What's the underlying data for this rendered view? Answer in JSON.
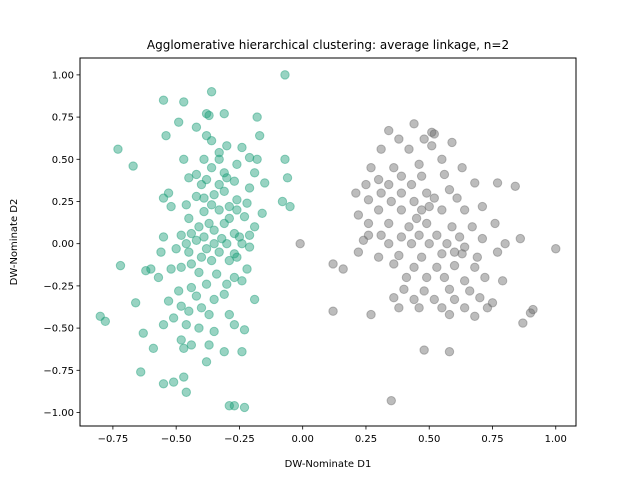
{
  "chart_data": {
    "type": "scatter",
    "title": "Agglomerative hierarchical clustering: average linkage, n=2",
    "xlabel": "DW-Nominate D1",
    "ylabel": "DW-Nominate D2",
    "xlim": [
      -0.88,
      1.08
    ],
    "ylim": [
      -1.08,
      1.1
    ],
    "xticks": [
      -0.75,
      -0.5,
      -0.25,
      0.0,
      0.25,
      0.5,
      0.75,
      1.0
    ],
    "xtick_labels": [
      "−0.75",
      "−0.50",
      "−0.25",
      "0.00",
      "0.25",
      "0.50",
      "0.75",
      "1.00"
    ],
    "yticks": [
      -1.0,
      -0.75,
      -0.5,
      -0.25,
      0.0,
      0.25,
      0.5,
      0.75,
      1.0
    ],
    "ytick_labels": [
      "−1.00",
      "−0.75",
      "−0.50",
      "−0.25",
      "0.00",
      "0.25",
      "0.50",
      "0.75",
      "1.00"
    ],
    "grid": false,
    "series": [
      {
        "color": "#1b9e77",
        "alpha": 0.45,
        "points": [
          [
            -0.07,
            1.0
          ],
          [
            -0.36,
            0.9
          ],
          [
            -0.55,
            0.85
          ],
          [
            -0.47,
            0.84
          ],
          [
            -0.38,
            0.77
          ],
          [
            -0.31,
            0.77
          ],
          [
            -0.37,
            0.76
          ],
          [
            -0.42,
            0.69
          ],
          [
            -0.18,
            0.75
          ],
          [
            -0.49,
            0.72
          ],
          [
            -0.54,
            0.64
          ],
          [
            -0.38,
            0.64
          ],
          [
            -0.36,
            0.61
          ],
          [
            -0.17,
            0.64
          ],
          [
            -0.73,
            0.56
          ],
          [
            -0.3,
            0.58
          ],
          [
            -0.24,
            0.57
          ],
          [
            -0.33,
            0.54
          ],
          [
            -0.21,
            0.51
          ],
          [
            -0.07,
            0.5
          ],
          [
            -0.67,
            0.46
          ],
          [
            -0.47,
            0.5
          ],
          [
            -0.39,
            0.5
          ],
          [
            -0.33,
            0.5
          ],
          [
            -0.18,
            0.5
          ],
          [
            -0.26,
            0.47
          ],
          [
            -0.36,
            0.45
          ],
          [
            -0.31,
            0.42
          ],
          [
            -0.19,
            0.42
          ],
          [
            -0.42,
            0.41
          ],
          [
            -0.3,
            0.39
          ],
          [
            -0.45,
            0.39
          ],
          [
            -0.38,
            0.38
          ],
          [
            -0.27,
            0.37
          ],
          [
            -0.4,
            0.35
          ],
          [
            -0.33,
            0.35
          ],
          [
            -0.15,
            0.36
          ],
          [
            -0.06,
            0.39
          ],
          [
            -0.21,
            0.33
          ],
          [
            -0.31,
            0.31
          ],
          [
            -0.35,
            0.29
          ],
          [
            -0.42,
            0.28
          ],
          [
            -0.53,
            0.3
          ],
          [
            -0.55,
            0.27
          ],
          [
            -0.39,
            0.27
          ],
          [
            -0.26,
            0.26
          ],
          [
            -0.22,
            0.24
          ],
          [
            -0.08,
            0.25
          ],
          [
            -0.05,
            0.22
          ],
          [
            -0.46,
            0.23
          ],
          [
            -0.52,
            0.22
          ],
          [
            -0.36,
            0.23
          ],
          [
            -0.29,
            0.22
          ],
          [
            -0.33,
            0.2
          ],
          [
            -0.39,
            0.19
          ],
          [
            -0.26,
            0.2
          ],
          [
            -0.23,
            0.16
          ],
          [
            -0.29,
            0.15
          ],
          [
            -0.16,
            0.18
          ],
          [
            -0.45,
            0.15
          ],
          [
            -0.31,
            0.12
          ],
          [
            -0.37,
            0.12
          ],
          [
            -0.41,
            0.1
          ],
          [
            -0.35,
            0.08
          ],
          [
            -0.27,
            0.06
          ],
          [
            -0.19,
            0.1
          ],
          [
            -0.44,
            0.06
          ],
          [
            -0.48,
            0.05
          ],
          [
            -0.39,
            0.04
          ],
          [
            -0.32,
            0.03
          ],
          [
            -0.25,
            0.04
          ],
          [
            -0.21,
            0.05
          ],
          [
            -0.42,
            0.02
          ],
          [
            -0.46,
            0.0
          ],
          [
            -0.35,
            0.0
          ],
          [
            -0.3,
            0.0
          ],
          [
            -0.24,
            0.0
          ],
          [
            -0.21,
            -0.02
          ],
          [
            -0.38,
            -0.03
          ],
          [
            -0.5,
            -0.03
          ],
          [
            -0.45,
            -0.05
          ],
          [
            -0.33,
            -0.05
          ],
          [
            -0.27,
            -0.06
          ],
          [
            -0.4,
            -0.08
          ],
          [
            -0.36,
            -0.1
          ],
          [
            -0.29,
            -0.1
          ],
          [
            -0.44,
            -0.12
          ],
          [
            -0.48,
            -0.14
          ],
          [
            -0.56,
            -0.05
          ],
          [
            -0.55,
            0.04
          ],
          [
            -0.6,
            -0.15
          ],
          [
            -0.52,
            -0.15
          ],
          [
            -0.41,
            -0.17
          ],
          [
            -0.34,
            -0.18
          ],
          [
            -0.27,
            -0.2
          ],
          [
            -0.24,
            -0.22
          ],
          [
            -0.3,
            -0.24
          ],
          [
            -0.38,
            -0.24
          ],
          [
            -0.44,
            -0.26
          ],
          [
            -0.49,
            -0.28
          ],
          [
            -0.42,
            -0.31
          ],
          [
            -0.35,
            -0.33
          ],
          [
            -0.31,
            -0.3
          ],
          [
            -0.53,
            -0.34
          ],
          [
            -0.48,
            -0.37
          ],
          [
            -0.4,
            -0.38
          ],
          [
            -0.45,
            -0.4
          ],
          [
            -0.37,
            -0.42
          ],
          [
            -0.29,
            -0.42
          ],
          [
            -0.51,
            -0.44
          ],
          [
            -0.46,
            -0.48
          ],
          [
            -0.55,
            -0.48
          ],
          [
            -0.41,
            -0.5
          ],
          [
            -0.35,
            -0.52
          ],
          [
            -0.27,
            -0.48
          ],
          [
            -0.48,
            -0.57
          ],
          [
            -0.44,
            -0.6
          ],
          [
            -0.37,
            -0.6
          ],
          [
            -0.31,
            -0.64
          ],
          [
            -0.24,
            -0.64
          ],
          [
            -0.47,
            -0.62
          ],
          [
            -0.59,
            -0.62
          ],
          [
            -0.38,
            -0.7
          ],
          [
            -0.47,
            -0.79
          ],
          [
            -0.51,
            -0.82
          ],
          [
            -0.55,
            -0.83
          ],
          [
            -0.46,
            -0.88
          ],
          [
            -0.64,
            -0.76
          ],
          [
            -0.63,
            -0.53
          ],
          [
            -0.66,
            -0.35
          ],
          [
            -0.8,
            -0.43
          ],
          [
            -0.78,
            -0.46
          ],
          [
            -0.72,
            -0.13
          ],
          [
            -0.62,
            -0.16
          ],
          [
            -0.57,
            -0.2
          ],
          [
            -0.19,
            -0.33
          ],
          [
            -0.23,
            -0.51
          ],
          [
            -0.29,
            -0.96
          ],
          [
            -0.27,
            -0.96
          ],
          [
            -0.23,
            -0.97
          ],
          [
            -0.26,
            -0.08
          ],
          [
            -0.22,
            -0.15
          ]
        ]
      },
      {
        "color": "#6b6b6b",
        "alpha": 0.45,
        "points": [
          [
            -0.01,
            0.0
          ],
          [
            0.44,
            0.71
          ],
          [
            0.51,
            0.66
          ],
          [
            0.52,
            0.65
          ],
          [
            0.34,
            0.67
          ],
          [
            0.48,
            0.62
          ],
          [
            0.38,
            0.62
          ],
          [
            0.59,
            0.6
          ],
          [
            0.31,
            0.56
          ],
          [
            0.42,
            0.56
          ],
          [
            0.51,
            0.58
          ],
          [
            0.27,
            0.45
          ],
          [
            0.36,
            0.45
          ],
          [
            0.46,
            0.47
          ],
          [
            0.55,
            0.5
          ],
          [
            0.63,
            0.45
          ],
          [
            0.3,
            0.38
          ],
          [
            0.39,
            0.4
          ],
          [
            0.47,
            0.4
          ],
          [
            0.56,
            0.41
          ],
          [
            0.43,
            0.35
          ],
          [
            0.34,
            0.35
          ],
          [
            0.25,
            0.35
          ],
          [
            0.21,
            0.3
          ],
          [
            0.31,
            0.3
          ],
          [
            0.39,
            0.3
          ],
          [
            0.49,
            0.3
          ],
          [
            0.58,
            0.32
          ],
          [
            0.68,
            0.36
          ],
          [
            0.77,
            0.36
          ],
          [
            0.84,
            0.34
          ],
          [
            0.26,
            0.26
          ],
          [
            0.35,
            0.25
          ],
          [
            0.44,
            0.25
          ],
          [
            0.52,
            0.27
          ],
          [
            0.61,
            0.27
          ],
          [
            0.71,
            0.22
          ],
          [
            0.3,
            0.2
          ],
          [
            0.22,
            0.17
          ],
          [
            0.39,
            0.2
          ],
          [
            0.47,
            0.2
          ],
          [
            0.55,
            0.2
          ],
          [
            0.64,
            0.2
          ],
          [
            0.26,
            0.12
          ],
          [
            0.34,
            0.12
          ],
          [
            0.42,
            0.1
          ],
          [
            0.49,
            0.12
          ],
          [
            0.59,
            0.1
          ],
          [
            0.67,
            0.1
          ],
          [
            0.76,
            0.12
          ],
          [
            0.31,
            0.05
          ],
          [
            0.39,
            0.04
          ],
          [
            0.46,
            0.05
          ],
          [
            0.53,
            0.05
          ],
          [
            0.62,
            0.04
          ],
          [
            0.71,
            0.03
          ],
          [
            0.24,
            0.02
          ],
          [
            0.34,
            0.0
          ],
          [
            0.43,
            0.0
          ],
          [
            0.5,
            0.0
          ],
          [
            0.57,
            0.0
          ],
          [
            0.64,
            -0.02
          ],
          [
            0.8,
            0.0
          ],
          [
            0.86,
            0.03
          ],
          [
            0.22,
            -0.05
          ],
          [
            0.3,
            -0.08
          ],
          [
            0.38,
            -0.07
          ],
          [
            0.47,
            -0.08
          ],
          [
            0.55,
            -0.06
          ],
          [
            0.63,
            -0.06
          ],
          [
            0.69,
            -0.08
          ],
          [
            0.77,
            -0.05
          ],
          [
            0.36,
            -0.12
          ],
          [
            0.44,
            -0.14
          ],
          [
            0.53,
            -0.14
          ],
          [
            0.6,
            -0.13
          ],
          [
            0.68,
            -0.14
          ],
          [
            0.12,
            -0.12
          ],
          [
            0.16,
            -0.15
          ],
          [
            0.41,
            -0.2
          ],
          [
            0.49,
            -0.2
          ],
          [
            0.56,
            -0.2
          ],
          [
            0.64,
            -0.22
          ],
          [
            0.72,
            -0.2
          ],
          [
            0.79,
            -0.22
          ],
          [
            0.4,
            -0.27
          ],
          [
            0.48,
            -0.28
          ],
          [
            0.58,
            -0.27
          ],
          [
            0.66,
            -0.28
          ],
          [
            0.36,
            -0.32
          ],
          [
            0.44,
            -0.33
          ],
          [
            0.52,
            -0.33
          ],
          [
            0.6,
            -0.33
          ],
          [
            0.7,
            -0.32
          ],
          [
            0.75,
            -0.35
          ],
          [
            0.12,
            -0.4
          ],
          [
            0.27,
            -0.42
          ],
          [
            0.38,
            -0.38
          ],
          [
            0.46,
            -0.38
          ],
          [
            0.55,
            -0.38
          ],
          [
            0.64,
            -0.38
          ],
          [
            0.73,
            -0.38
          ],
          [
            0.91,
            -0.39
          ],
          [
            0.9,
            -0.41
          ],
          [
            0.87,
            -0.47
          ],
          [
            0.68,
            -0.43
          ],
          [
            0.58,
            -0.42
          ],
          [
            0.48,
            -0.63
          ],
          [
            0.58,
            -0.64
          ],
          [
            0.35,
            -0.93
          ],
          [
            1.0,
            -0.03
          ],
          [
            0.26,
            0.05
          ],
          [
            0.5,
            0.22
          ],
          [
            0.6,
            -0.05
          ],
          [
            0.45,
            0.15
          ]
        ]
      }
    ]
  }
}
